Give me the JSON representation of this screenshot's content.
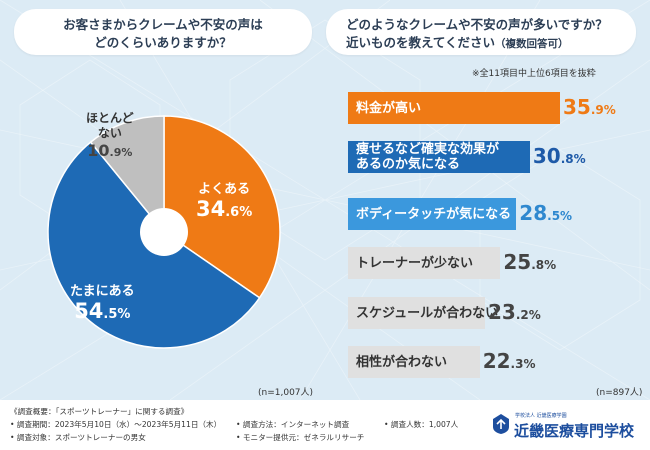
{
  "left_question": {
    "line1": "お客さまからクレームや不安の声は",
    "line2": "どのくらいありますか？"
  },
  "right_question": {
    "line1": "どのようなクレームや不安の声が多いですか？",
    "line2": "近いものを教えてください",
    "line2_sub": "（複数回答可）"
  },
  "bar_note": "※全11項目中上位6項目を抜粋",
  "pie_n": "(n=1,007人)",
  "bar_n": "(n=897人)",
  "chart_data": [
    {
      "type": "pie",
      "title": "お客さまからクレームや不安の声はどのくらいありますか？",
      "unit": "%",
      "slices": [
        {
          "label": "よくある",
          "label_lines": [
            "よくある"
          ],
          "value": 34.6,
          "value_int": "34",
          "value_dec": ".6%",
          "color": "#ef7a15",
          "text_color": "#ffffff"
        },
        {
          "label": "たまにある",
          "label_lines": [
            "たまにある"
          ],
          "value": 54.5,
          "value_int": "54",
          "value_dec": ".5%",
          "color": "#1e6ab5",
          "text_color": "#ffffff"
        },
        {
          "label": "ほとんどない",
          "label_lines": [
            "ほとんど",
            "ない"
          ],
          "value": 10.9,
          "value_int": "10",
          "value_dec": ".9%",
          "color": "#bfbfbf",
          "text_color": "#333333"
        }
      ],
      "start_angle_deg": 0,
      "direction": "clockwise"
    },
    {
      "type": "bar",
      "orientation": "horizontal",
      "title": "どのようなクレームや不安の声が多いですか？近いものを教えてください（複数回答可）",
      "unit": "%",
      "xlim": [
        0,
        40
      ],
      "bars": [
        {
          "label": "料金が高い",
          "label_lines": [
            "料金が高い"
          ],
          "value": 35.9,
          "value_int": "35",
          "value_dec": ".9%",
          "color": "#ef7a15",
          "text_color": "#ffffff",
          "value_color": "#ef7a15"
        },
        {
          "label": "痩せるなど確実な効果があるのか気になる",
          "label_lines": [
            "痩せるなど確実な効果が",
            "あるのか気になる"
          ],
          "value": 30.8,
          "value_int": "30",
          "value_dec": ".8%",
          "color": "#1e6ab5",
          "text_color": "#ffffff",
          "value_color": "#1e5aa8"
        },
        {
          "label": "ボディータッチが気になる",
          "label_lines": [
            "ボディータッチが気になる"
          ],
          "value": 28.5,
          "value_int": "28",
          "value_dec": ".5%",
          "color": "#3b98dd",
          "text_color": "#ffffff",
          "value_color": "#2f88cf"
        },
        {
          "label": "トレーナーが少ない",
          "label_lines": [
            "トレーナーが少ない"
          ],
          "value": 25.8,
          "value_int": "25",
          "value_dec": ".8%",
          "color": "#e0e0e0",
          "text_color": "#333333",
          "value_color": "#444444"
        },
        {
          "label": "スケジュールが合わない",
          "label_lines": [
            "スケジュールが合わない"
          ],
          "value": 23.2,
          "value_int": "23",
          "value_dec": ".2%",
          "color": "#e0e0e0",
          "text_color": "#333333",
          "value_color": "#444444"
        },
        {
          "label": "相性が合わない",
          "label_lines": [
            "相性が合わない"
          ],
          "value": 22.3,
          "value_int": "22",
          "value_dec": ".3%",
          "color": "#e0e0e0",
          "text_color": "#333333",
          "value_color": "#444444"
        }
      ]
    }
  ],
  "footer": {
    "overview": "《調査概要：「スポーツトレーナー」に関する調査》",
    "period": "• 調査期間：2023年5月10日（水）～2023年5月11日（木）",
    "target": "• 調査対象：スポーツトレーナーの男女",
    "method": "• 調査方法：インターネット調査",
    "monitor": "• モニター提供元：ゼネラルリサーチ",
    "people": "• 調査人数：1,007人",
    "school_sub": "学校法人 近畿医療学園",
    "school_name": "近畿医療専門学校"
  },
  "colors": {
    "background": "#dcebf5",
    "question_text": "#2c3e55",
    "school_blue": "#1d4e9e"
  }
}
